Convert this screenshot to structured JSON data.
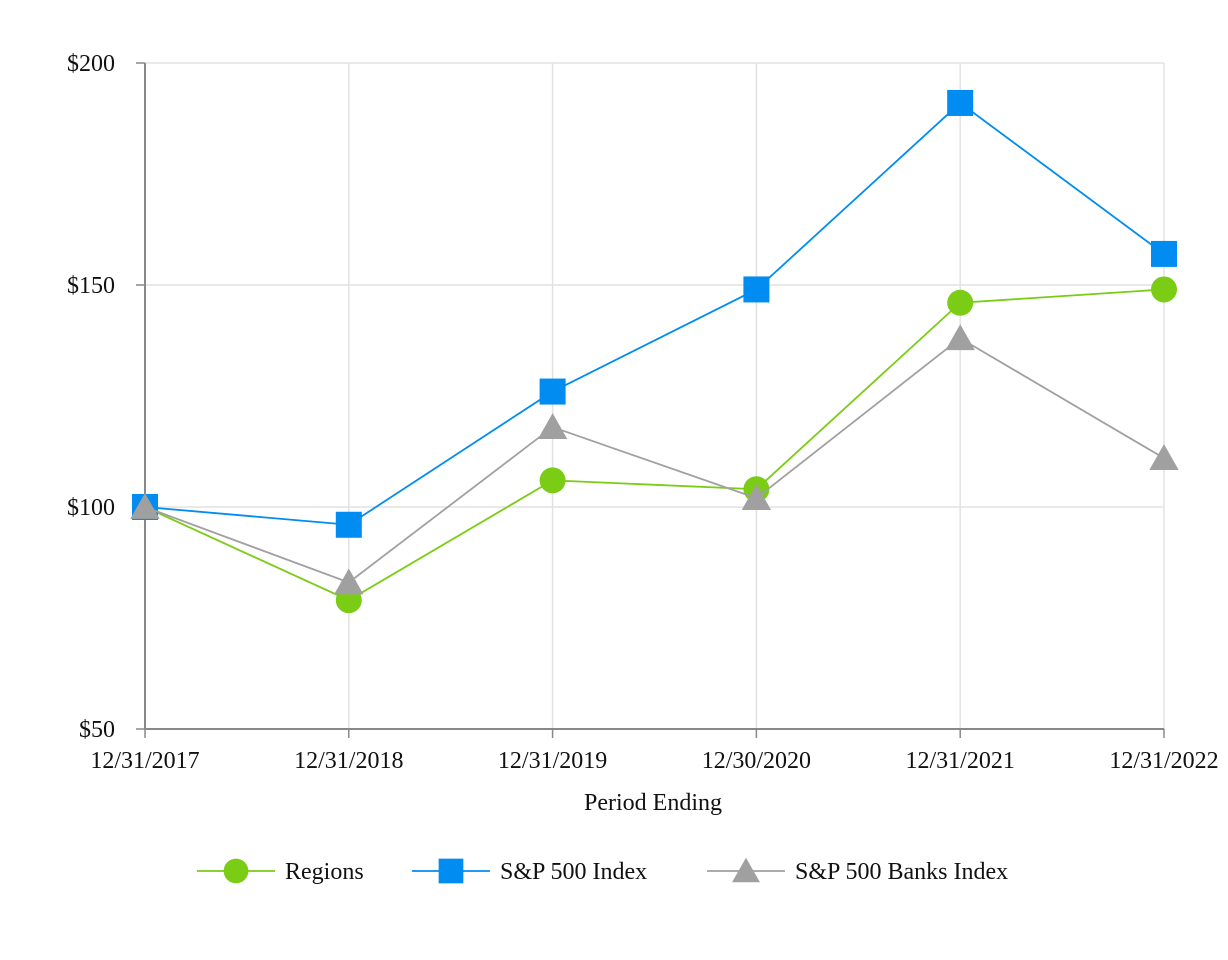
{
  "chart_data": {
    "type": "line",
    "title": "",
    "xlabel": "Period Ending",
    "ylabel": "",
    "categories": [
      "12/31/2017",
      "12/31/2018",
      "12/31/2019",
      "12/30/2020",
      "12/31/2021",
      "12/31/2022"
    ],
    "ylim": [
      50,
      200
    ],
    "yticks": [
      50,
      100,
      150,
      200
    ],
    "ytick_labels": [
      "$50",
      "$100",
      "$150",
      "$200"
    ],
    "grid": true,
    "legend_position": "bottom",
    "series": [
      {
        "name": "Regions",
        "marker": "circle",
        "color": "#7ACC14",
        "values": [
          100,
          79,
          106,
          104,
          146,
          149
        ]
      },
      {
        "name": "S&P 500 Index",
        "marker": "square",
        "color": "#008CF0",
        "values": [
          100,
          96,
          126,
          149,
          191,
          157
        ]
      },
      {
        "name": "S&P 500 Banks Index",
        "marker": "triangle",
        "color": "#A0A0A0",
        "values": [
          100,
          83,
          118,
          102,
          138,
          111
        ]
      }
    ]
  }
}
